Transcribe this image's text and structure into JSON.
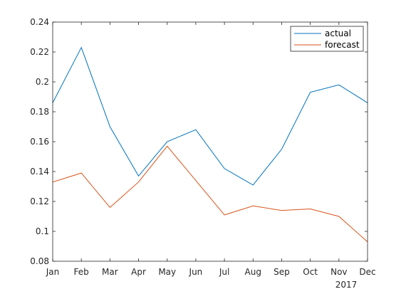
{
  "chart_data": {
    "type": "line",
    "categories": [
      "Jan",
      "Feb",
      "Mar",
      "Apr",
      "May",
      "Jun",
      "Jul",
      "Aug",
      "Sep",
      "Oct",
      "Nov",
      "Dec"
    ],
    "year_label": "2017",
    "ylim": [
      0.08,
      0.24
    ],
    "yticks": [
      0.08,
      0.1,
      0.12,
      0.14,
      0.16,
      0.18,
      0.2,
      0.22,
      0.24
    ],
    "ytick_labels": [
      "0.08",
      "0.1",
      "0.12",
      "0.14",
      "0.16",
      "0.18",
      "0.2",
      "0.22",
      "0.24"
    ],
    "grid": false,
    "legend_position": "top-right",
    "series": [
      {
        "name": "actual",
        "color": "#0072BD",
        "values": [
          0.186,
          0.223,
          0.17,
          0.137,
          0.16,
          0.168,
          0.142,
          0.131,
          0.155,
          0.193,
          0.198,
          0.186
        ]
      },
      {
        "name": "forecast",
        "color": "#D95319",
        "values": [
          0.133,
          0.139,
          0.116,
          0.133,
          0.157,
          0.134,
          0.111,
          0.117,
          0.114,
          0.115,
          0.11,
          0.093
        ]
      }
    ]
  }
}
